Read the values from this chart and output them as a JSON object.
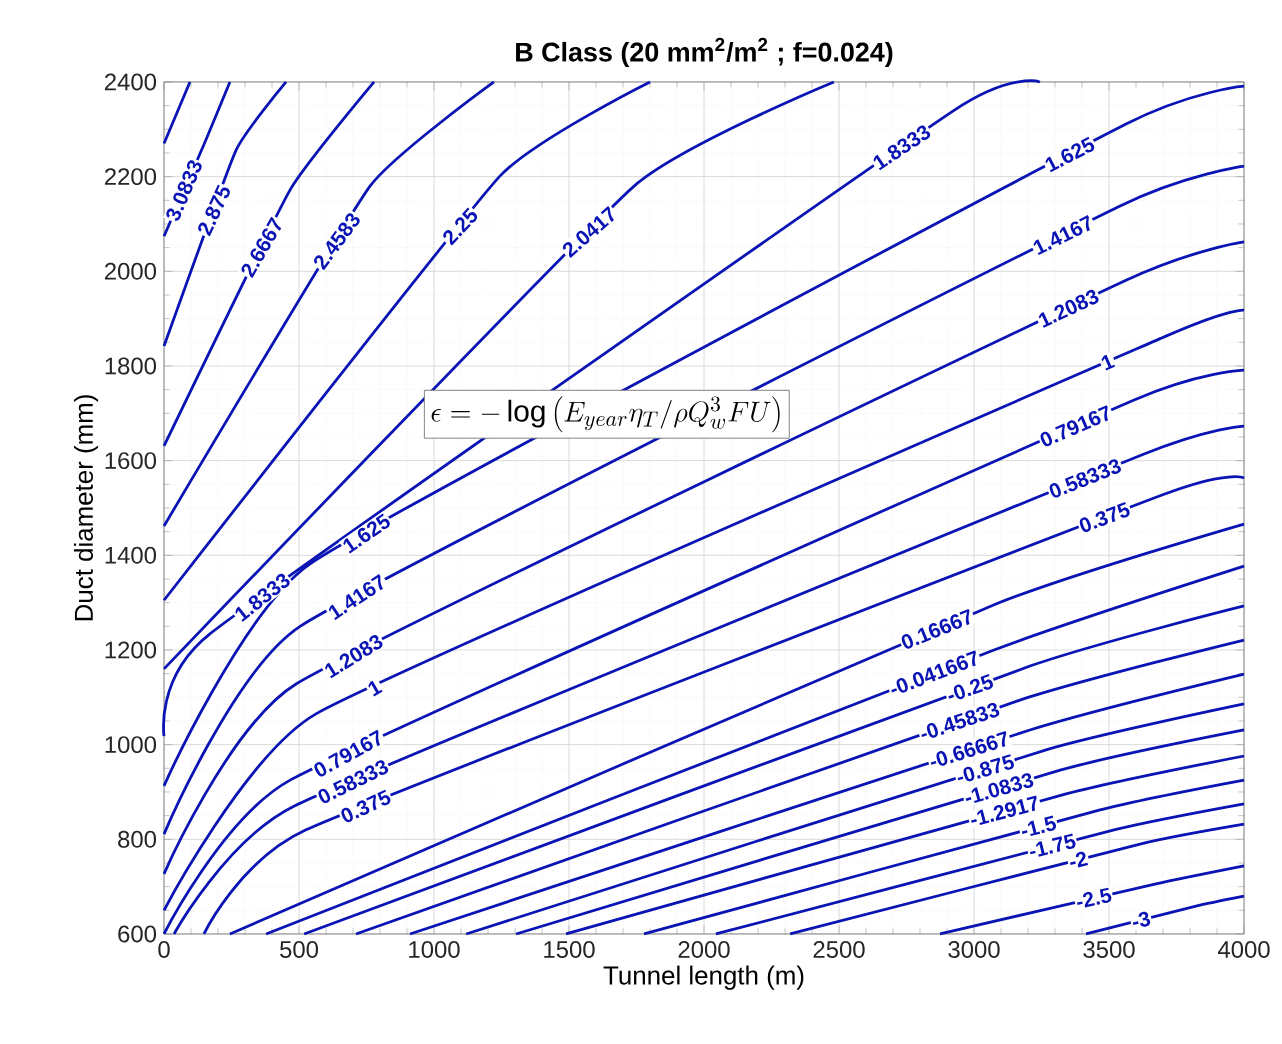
{
  "chart_data": {
    "type": "line",
    "title": "B Class (20 mm$^{2}$/m$^{2}$ ; f=0.024)",
    "xlabel": "Tunnel length (m)",
    "ylabel": "Duct diameter (mm)",
    "xlim": [
      0,
      4000
    ],
    "ylim": [
      600,
      2400
    ],
    "xticks": [
      0,
      500,
      1000,
      1500,
      2000,
      2500,
      3000,
      3500,
      4000
    ],
    "yticks": [
      600,
      800,
      1000,
      1200,
      1400,
      1600,
      1800,
      2000,
      2200,
      2400
    ],
    "grid": true,
    "annotations": [
      "\\epsilon=-\\log\\left(E_{year}\\eta_T/\\rho Q_w^3FU\\right)"
    ],
    "series": [
      {
        "color": "#0a14b4",
        "x": [
          0,
          96
        ],
        "values": [
          2270,
          2400
        ]
      },
      {
        "name": "3.0833",
        "color": "#0a14b4",
        "x": [
          0,
          148,
          244
        ],
        "values": [
          2074,
          2268,
          2400
        ]
      },
      {
        "name": "2.875",
        "color": "#0a14b4",
        "x": [
          0,
          267,
          452
        ],
        "values": [
          1842,
          2256,
          2400
        ]
      },
      {
        "name": "2.6667",
        "color": "#0a14b4",
        "x": [
          0,
          467,
          778
        ],
        "values": [
          1631,
          2172,
          2400
        ]
      },
      {
        "name": "2.4583",
        "color": "#0a14b4",
        "x": [
          0,
          763,
          1222
        ],
        "values": [
          1462,
          2180,
          2400
        ]
      },
      {
        "name": "2.25",
        "color": "#0a14b4",
        "x": [
          0,
          1244,
          1800
        ],
        "values": [
          1305,
          2201,
          2400
        ]
      },
      {
        "name": "2.0417",
        "color": "#0a14b4",
        "x": [
          0,
          1741,
          2481
        ],
        "values": [
          1160,
          2180,
          2400
        ]
      },
      {
        "name": "1.8333",
        "color": "#0a14b4",
        "x": [
          0,
          170,
          2926,
          3244
        ],
        "values": [
          1018,
          1234,
          2340,
          2400
        ]
      },
      {
        "name": "1.625",
        "color": "#0a14b4",
        "x": [
          0,
          541,
          3563,
          4000
        ],
        "values": [
          913,
          1382,
          2311,
          2391
        ]
      },
      {
        "name": "1.4167",
        "color": "#0a14b4",
        "x": [
          0,
          504,
          3541,
          4000
        ],
        "values": [
          811,
          1250,
          2138,
          2222
        ]
      },
      {
        "name": "1.2083",
        "color": "#0a14b4",
        "x": [
          0,
          489,
          3563,
          4000
        ],
        "values": [
          727,
          1128,
          1981,
          2062
        ]
      },
      {
        "name": "1",
        "color": "#0a14b4",
        "x": [
          0,
          563,
          3711,
          4000
        ],
        "values": [
          650,
          1065,
          1863,
          1918
        ]
      },
      {
        "name": "0.79167",
        "color": "#0a14b4",
        "x": [
          0,
          467,
          3593,
          4000
        ],
        "values": [
          600,
          925,
          1728,
          1791
        ]
      },
      {
        "name": "0.58333",
        "color": "#0a14b4",
        "x": [
          37,
          481,
          3630,
          4000
        ],
        "values": [
          600,
          870,
          1614,
          1673
        ]
      },
      {
        "name": "0.375",
        "color": "#0a14b4",
        "x": [
          148,
          526,
          3704,
          4000
        ],
        "values": [
          600,
          820,
          1529,
          1563
        ]
      },
      {
        "name": "0.16667",
        "color": "#0a14b4",
        "x": [
          244,
          3081,
          4000
        ],
        "values": [
          600,
          1297,
          1466
        ]
      },
      {
        "name": "-0.041667",
        "color": "#0a14b4",
        "x": [
          378,
          3074,
          4000
        ],
        "values": [
          600,
          1200,
          1377
        ]
      },
      {
        "name": "-0.25",
        "color": "#0a14b4",
        "x": [
          519,
          3207,
          4000
        ],
        "values": [
          600,
          1166,
          1293
        ]
      },
      {
        "name": "-0.45833",
        "color": "#0a14b4",
        "x": [
          711,
          3170,
          4000
        ],
        "values": [
          600,
          1094,
          1221
        ]
      },
      {
        "name": "-0.66667",
        "color": "#0a14b4",
        "x": [
          911,
          3207,
          4000
        ],
        "values": [
          600,
          1031,
          1149
        ]
      },
      {
        "name": "-0.875",
        "color": "#0a14b4",
        "x": [
          1119,
          3267,
          4000
        ],
        "values": [
          600,
          989,
          1086
        ]
      },
      {
        "name": "-1.0833",
        "color": "#0a14b4",
        "x": [
          1304,
          3319,
          4000
        ],
        "values": [
          600,
          946,
          1031
        ]
      },
      {
        "name": "-1.2917",
        "color": "#0a14b4",
        "x": [
          1489,
          3341,
          4000
        ],
        "values": [
          600,
          896,
          976
        ]
      },
      {
        "name": "-1.5",
        "color": "#0a14b4",
        "x": [
          1778,
          3467,
          4000
        ],
        "values": [
          600,
          862,
          925
        ]
      },
      {
        "name": "-1.75",
        "color": "#0a14b4",
        "x": [
          2044,
          3519,
          4000
        ],
        "values": [
          600,
          820,
          875
        ]
      },
      {
        "name": "-2",
        "color": "#0a14b4",
        "x": [
          2319,
          3615,
          4000
        ],
        "values": [
          600,
          790,
          832
        ]
      },
      {
        "name": "-2.5",
        "color": "#0a14b4",
        "x": [
          2874,
          3674,
          4000
        ],
        "values": [
          600,
          706,
          744
        ]
      },
      {
        "name": "-3",
        "color": "#0a14b4",
        "x": [
          3415,
          3822,
          4000
        ],
        "values": [
          600,
          659,
          680
        ]
      }
    ]
  }
}
